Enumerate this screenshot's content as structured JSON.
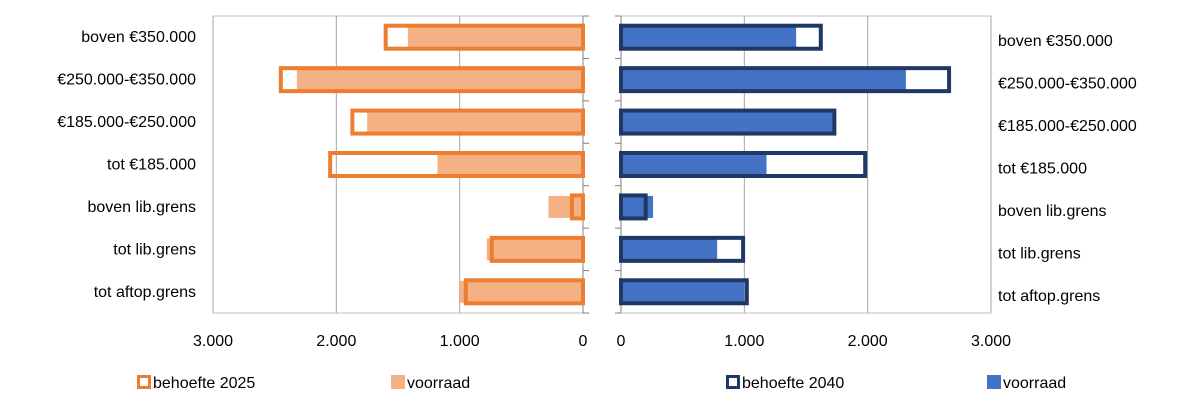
{
  "chart_data": [
    {
      "type": "bar",
      "orientation": "horizontal",
      "x_direction": "reversed",
      "categories": [
        "boven €350.000",
        "€250.000-€350.000",
        "€185.000-€250.000",
        "tot €185.000",
        "boven lib.grens",
        "tot lib.grens",
        "tot aftop.grens"
      ],
      "series": [
        {
          "name": "behoefte 2025",
          "style": "outline",
          "color": "#ED7D31",
          "values": [
            1600,
            2450,
            1870,
            2050,
            90,
            740,
            950
          ]
        },
        {
          "name": "voorraad",
          "style": "fill",
          "color": "#F4B183",
          "values": [
            1420,
            2320,
            1750,
            1180,
            280,
            780,
            1000
          ]
        }
      ],
      "xlim": [
        0,
        3000
      ],
      "ticks": [
        "3.000",
        "2.000",
        "1.000",
        "0"
      ],
      "grid": true,
      "legend": "bottom",
      "category_labels": "left"
    },
    {
      "type": "bar",
      "orientation": "horizontal",
      "categories": [
        "boven €350.000",
        "€250.000-€350.000",
        "€185.000-€250.000",
        "tot €185.000",
        "boven lib.grens",
        "tot lib.grens",
        "tot aftop.grens"
      ],
      "series": [
        {
          "name": "behoefte 2040",
          "style": "outline",
          "color": "#1F3864",
          "values": [
            1620,
            2660,
            1730,
            1980,
            200,
            990,
            1020
          ]
        },
        {
          "name": "voorraad",
          "style": "fill",
          "color": "#4472C4",
          "values": [
            1420,
            2310,
            1720,
            1180,
            260,
            780,
            1000
          ]
        }
      ],
      "xlim": [
        0,
        3000
      ],
      "ticks": [
        "0",
        "1.000",
        "2.000",
        "3.000"
      ],
      "grid": true,
      "legend": "bottom",
      "category_labels": "right"
    }
  ]
}
